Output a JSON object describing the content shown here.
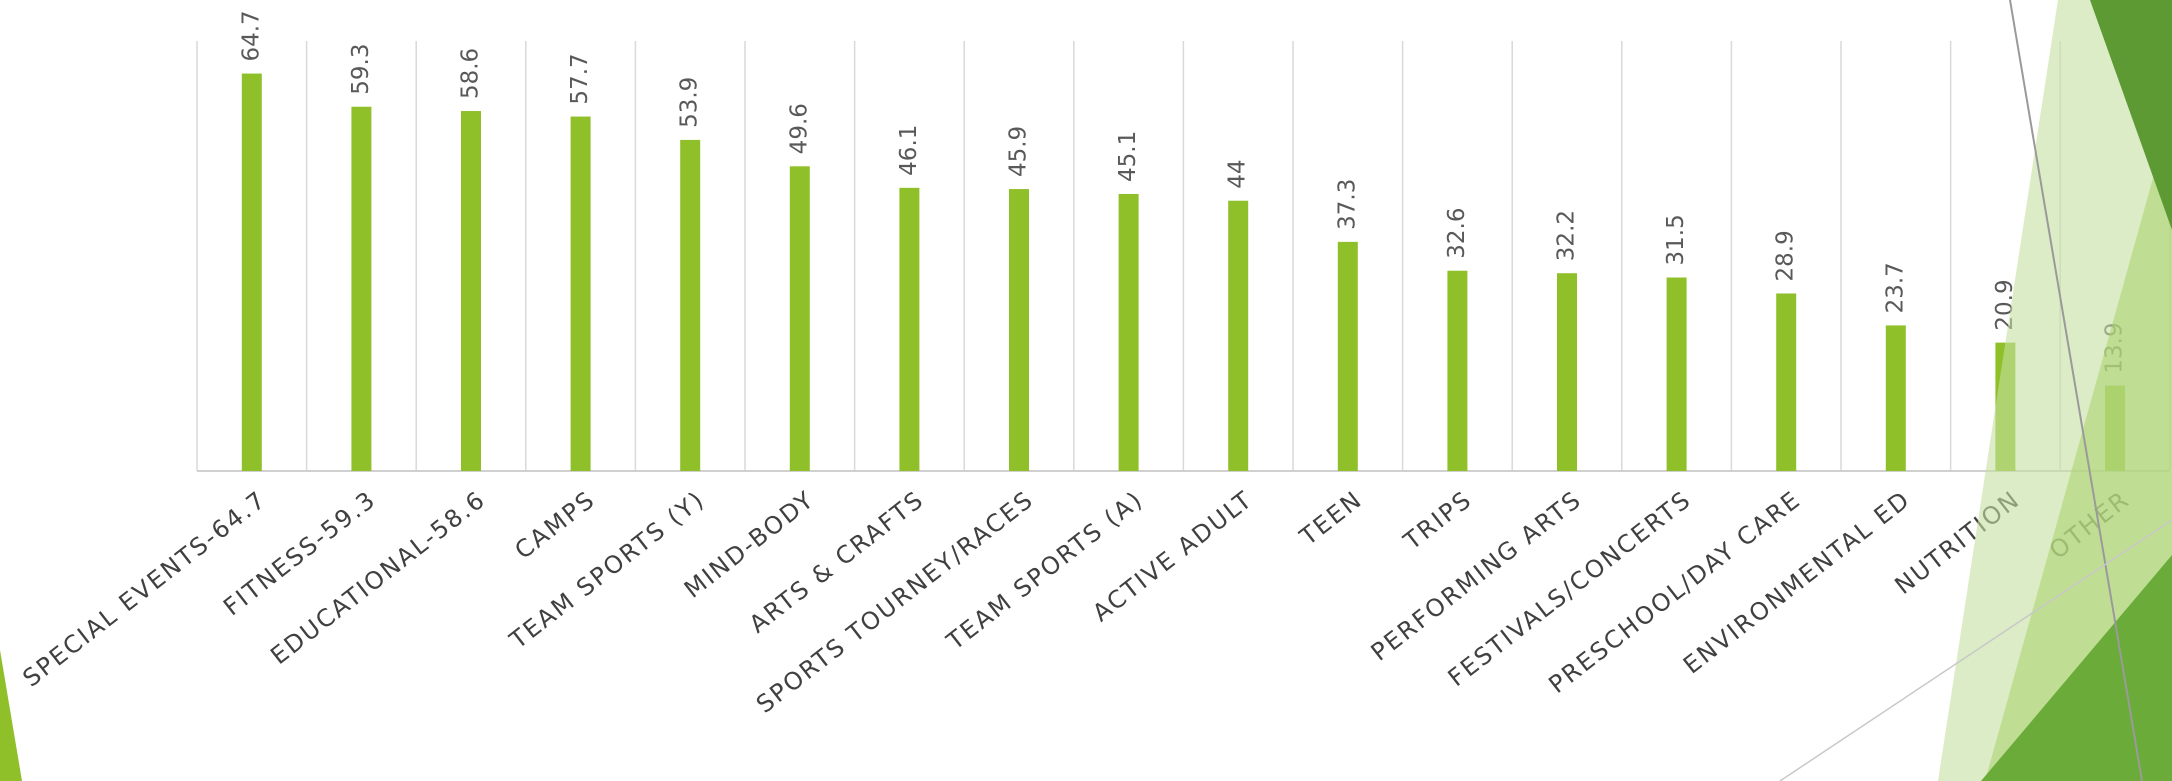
{
  "chart_data": {
    "type": "bar",
    "categories": [
      "SPECIAL EVENTS-64.7",
      "FITNESS-59.3",
      "EDUCATIONAL-58.6",
      "CAMPS",
      "TEAM SPORTS (Y)",
      "MIND-BODY",
      "ARTS & CRAFTS",
      "SPORTS TOURNEY/RACES",
      "TEAM SPORTS (A)",
      "ACTIVE ADULT",
      "TEEN",
      "TRIPS",
      "PERFORMING ARTS",
      "FESTIVALS/CONCERTS",
      "PRESCHOOL/DAY CARE",
      "ENVIRONMENTAL ED",
      "NUTRITION",
      "OTHER"
    ],
    "values": [
      64.7,
      59.3,
      58.6,
      57.7,
      53.9,
      49.6,
      46.1,
      45.9,
      45.1,
      44,
      37.3,
      32.6,
      32.2,
      31.5,
      28.9,
      23.7,
      20.9,
      13.9
    ],
    "color": "#8fc02a",
    "ylim": [
      0,
      70
    ],
    "grid": true
  }
}
